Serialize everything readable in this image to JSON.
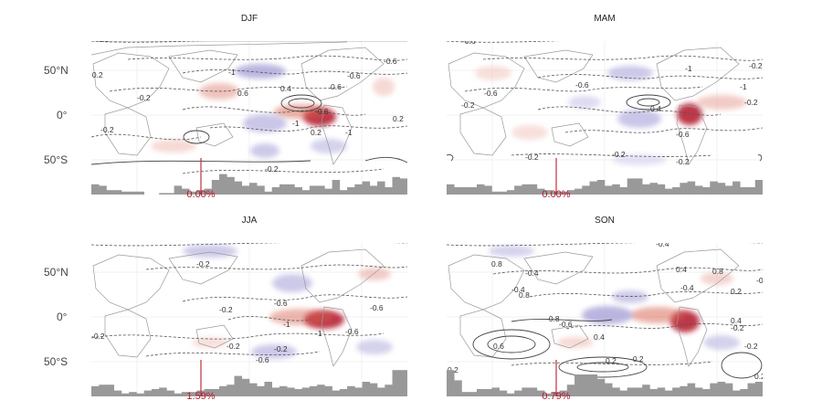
{
  "latitude_labels": [
    "50°N",
    "0°",
    "50°S"
  ],
  "colors": {
    "positive_anomaly": "#b2182b",
    "negative_anomaly": "#5e5aa8",
    "bars": "#999999",
    "marker": "#c0303a",
    "coast": "#9a9a9a",
    "contour": "#555555"
  },
  "panels": [
    {
      "id": "djf",
      "title": "DJF",
      "percentage": "0.00%",
      "contour_labels": [
        "-0.6",
        "-0.6",
        "-0.2",
        "-0.2",
        "-0.2",
        "0.6",
        "0.4",
        "0.6",
        "-0.6",
        "-1",
        "-1",
        "0.2",
        "-0.2",
        "0.2",
        "-1",
        "-0.6"
      ],
      "histogram": [
        0.35,
        0.3,
        0.15,
        0.15,
        0.1,
        0.1,
        0.1,
        0.0,
        0.0,
        0.05,
        0.05,
        0.3,
        0.2,
        0.1,
        0.15,
        0.2,
        0.5,
        0.7,
        0.6,
        0.45,
        0.3,
        0.4,
        0.3,
        0.1,
        0.25,
        0.35,
        0.35,
        0.25,
        0.15,
        0.3,
        0.3,
        0.2,
        0.5,
        0.15,
        0.25,
        0.35,
        0.45,
        0.3,
        0.45,
        0.25,
        0.6,
        0.55
      ]
    },
    {
      "id": "mam",
      "title": "MAM",
      "percentage": "0.00%",
      "contour_labels": [
        "-0.6",
        "-1",
        "-0.6",
        "-0.6",
        "-0.2",
        "-1",
        "-0.2",
        "0.4",
        "-0.6",
        "-0.2",
        "-0.2",
        "-0.2",
        "-0.2"
      ],
      "histogram": [
        0.35,
        0.25,
        0.25,
        0.25,
        0.35,
        0.3,
        0.1,
        0.1,
        0.15,
        0.3,
        0.35,
        0.35,
        0.2,
        0.15,
        0.1,
        0.1,
        0.15,
        0.2,
        0.3,
        0.45,
        0.5,
        0.3,
        0.35,
        0.25,
        0.55,
        0.55,
        0.35,
        0.4,
        0.35,
        0.2,
        0.25,
        0.4,
        0.45,
        0.3,
        0.25,
        0.45,
        0.4,
        0.3,
        0.45,
        0.25,
        0.25,
        0.5
      ]
    },
    {
      "id": "jja",
      "title": "JJA",
      "percentage": "1.59%",
      "contour_labels": [
        "-0.2",
        "-1",
        "-0.6",
        "-0.2",
        "-0.2",
        "-0.2",
        "-0.6",
        "-0.2",
        "-0.6",
        "-1",
        "-0.6"
      ],
      "histogram": [
        0.35,
        0.4,
        0.4,
        0.2,
        0.1,
        0.15,
        0.1,
        0.2,
        0.25,
        0.3,
        0.2,
        0.1,
        0.15,
        0.15,
        0.2,
        0.25,
        0.25,
        0.35,
        0.4,
        0.7,
        0.6,
        0.45,
        0.35,
        0.5,
        0.3,
        0.35,
        0.3,
        0.25,
        0.3,
        0.35,
        0.4,
        0.35,
        0.2,
        0.25,
        0.35,
        0.3,
        0.5,
        0.45,
        0.3,
        0.4,
        0.9,
        0.9
      ]
    },
    {
      "id": "son",
      "title": "SON",
      "percentage": "0.79%",
      "contour_labels": [
        "-0.4",
        "0.8",
        "-0.4",
        "-0.4",
        "0.8",
        "-0.8",
        "0.4",
        "-0.6",
        "-0.2",
        "0.2",
        "0.6",
        "0.4",
        "0.2",
        "0.8",
        "-0.4",
        "-0.2",
        "-0.2",
        "0.4",
        "-0.4",
        "0.2",
        "0.2"
      ],
      "histogram": [
        0.9,
        0.55,
        0.15,
        0.15,
        0.25,
        0.25,
        0.3,
        0.2,
        0.1,
        0.2,
        0.3,
        0.3,
        0.2,
        0.1,
        0.15,
        0.2,
        0.4,
        0.75,
        0.75,
        0.75,
        0.6,
        0.45,
        0.3,
        0.2,
        0.3,
        0.3,
        0.4,
        0.25,
        0.3,
        0.2,
        0.3,
        0.35,
        0.45,
        0.3,
        0.25,
        0.45,
        0.5,
        0.45,
        0.2,
        0.25,
        0.45,
        0.5
      ]
    }
  ]
}
